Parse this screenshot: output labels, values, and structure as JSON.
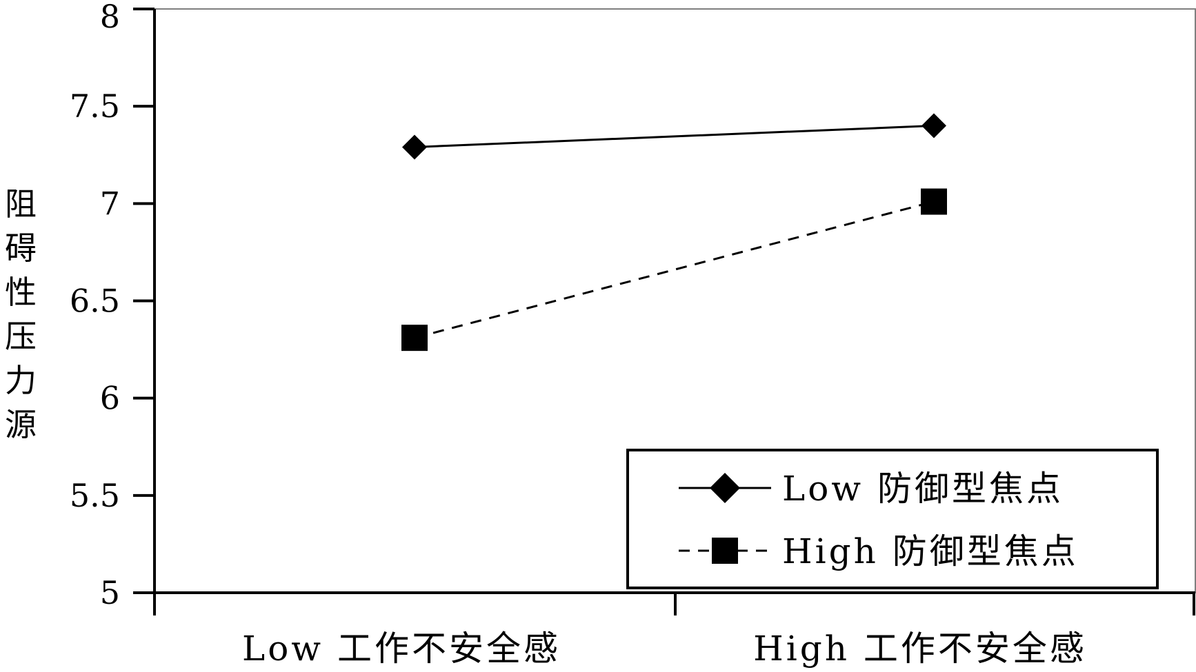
{
  "chart_data": {
    "type": "line",
    "title": "",
    "xlabel": "",
    "ylabel": "阻碍性压力源",
    "categories": [
      "Low 工作不安全感",
      "High 工作不安全感"
    ],
    "ylim": [
      5,
      8
    ],
    "yticks": [
      "5",
      "5.5",
      "6",
      "6.5",
      "7",
      "7.5",
      "8"
    ],
    "grid": false,
    "legend_position": "bottom-right",
    "series": [
      {
        "name": "Low 防御型焦点",
        "values": [
          7.29,
          7.4
        ],
        "line_style": "solid",
        "marker": "diamond",
        "color": "#000000"
      },
      {
        "name": "High 防御型焦点",
        "values": [
          6.31,
          7.01
        ],
        "line_style": "dashed",
        "marker": "square",
        "color": "#000000"
      }
    ]
  }
}
